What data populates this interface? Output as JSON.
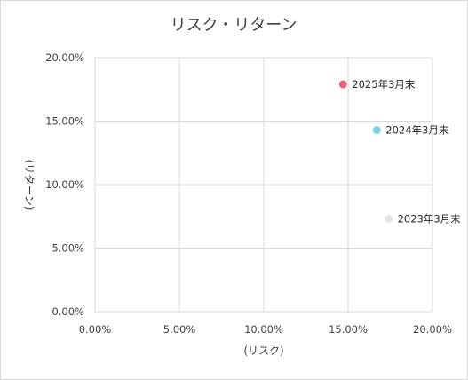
{
  "chart_data": {
    "type": "scatter",
    "title": "リスク・リターン",
    "xlabel": "(リスク)",
    "ylabel": "(リターン)",
    "xlim": [
      0,
      0.2
    ],
    "ylim": [
      0,
      0.2
    ],
    "grid": true,
    "x_ticks": [
      "0.00%",
      "5.00%",
      "10.00%",
      "15.00%",
      "20.00%"
    ],
    "y_ticks": [
      "0.00%",
      "5.00%",
      "10.00%",
      "15.00%",
      "20.00%"
    ],
    "points": [
      {
        "label": "2025年3月末",
        "x": 0.147,
        "y": 0.179,
        "color": "#e8637f"
      },
      {
        "label": "2024年3月末",
        "x": 0.167,
        "y": 0.143,
        "color": "#7fd0e3"
      },
      {
        "label": "2023年3月末",
        "x": 0.174,
        "y": 0.073,
        "color": "#e3e3e3"
      }
    ]
  }
}
